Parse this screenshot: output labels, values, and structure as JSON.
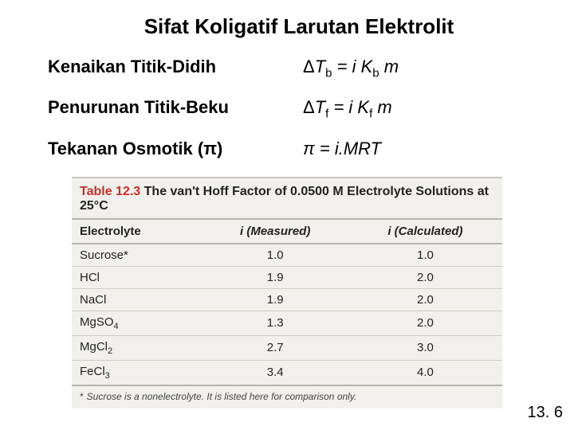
{
  "title": "Sifat Koligatif Larutan Elektrolit",
  "formulas": [
    {
      "label": "Kenaikan Titik-Didih",
      "delta": "Δ",
      "sym": "T",
      "sub": "b",
      "eq_mid": " = i K",
      "sub2": "b",
      "tail": " m"
    },
    {
      "label": "Penurunan Titik-Beku",
      "delta": "Δ",
      "sym": "T",
      "sub": "f",
      "eq_mid": " = i K",
      "sub2": "f",
      "tail": " m"
    },
    {
      "label": "Tekanan Osmotik (π)",
      "delta": "",
      "sym": "π",
      "sub": "",
      "eq_mid": " = i.MRT",
      "sub2": "",
      "tail": ""
    }
  ],
  "table": {
    "caption_num": "Table 12.3",
    "caption_txt": "The van't Hoff Factor of 0.0500 M Electrolyte Solutions at 25°C",
    "columns": [
      "Electrolyte",
      "i (Measured)",
      "i (Calculated)"
    ],
    "rows": [
      {
        "name": "Sucrose*",
        "sub": "",
        "measured": "1.0",
        "calculated": "1.0"
      },
      {
        "name": "HCl",
        "sub": "",
        "measured": "1.9",
        "calculated": "2.0"
      },
      {
        "name": "NaCl",
        "sub": "",
        "measured": "1.9",
        "calculated": "2.0"
      },
      {
        "name": "MgSO",
        "sub": "4",
        "measured": "1.3",
        "calculated": "2.0"
      },
      {
        "name": "MgCl",
        "sub": "2",
        "measured": "2.7",
        "calculated": "3.0"
      },
      {
        "name": "FeCl",
        "sub": "3",
        "measured": "3.4",
        "calculated": "4.0"
      }
    ],
    "footnote": "Sucrose is a nonelectrolyte. It is listed here for comparison only."
  },
  "page_number": "13. 6"
}
